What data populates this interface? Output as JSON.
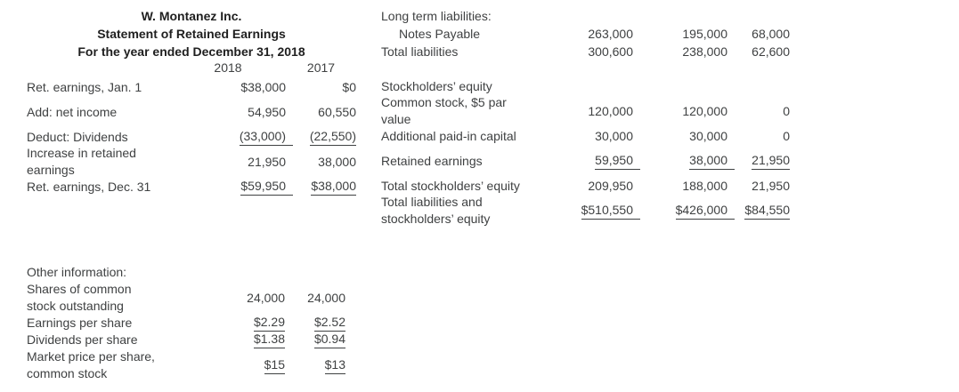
{
  "colors": {
    "background": "#ffffff",
    "body_text": "#3f4142",
    "heading_text": "#1f1f1f",
    "underline": "#3f4142"
  },
  "statement": {
    "company_name": "W. Montanez Inc.",
    "statement_title": "Statement of Retained Earnings",
    "period": "For the year ended December 31, 2018",
    "col_headers": [
      "2018",
      "2017"
    ],
    "rows": [
      {
        "label": "Ret. earnings, Jan. 1",
        "y2018": "$38,000",
        "y2017": "$0"
      },
      {
        "label": "Add: net income",
        "y2018": "54,950",
        "y2017": "60,550"
      },
      {
        "label": "Deduct: Dividends",
        "y2018": "(33,000)",
        "y2017": "(22,550)"
      },
      {
        "label": "Increase in retained\nearnings",
        "y2018": "21,950",
        "y2017": "38,000"
      },
      {
        "label": "Ret. earnings, Dec. 31",
        "y2018": "$59,950",
        "y2017": "$38,000"
      }
    ]
  },
  "balance": {
    "rows": [
      {
        "label": "Long term liabilities:",
        "col1": "",
        "col2": "",
        "col3": ""
      },
      {
        "label": "Notes Payable",
        "col1": "263,000",
        "col2": "195,000",
        "col3": "68,000"
      },
      {
        "label": "Total liabilities",
        "col1": "300,600",
        "col2": "238,000",
        "col3": "62,600"
      },
      {
        "label": "Stockholders’ equity",
        "col1": "",
        "col2": "",
        "col3": ""
      },
      {
        "label": "Common stock, $5 par\nvalue",
        "col1": "120,000",
        "col2": "120,000",
        "col3": "0"
      },
      {
        "label": "Additional paid-in capital",
        "col1": "30,000",
        "col2": "30,000",
        "col3": "0"
      },
      {
        "label": "Retained earnings",
        "col1": "59,950",
        "col2": "38,000",
        "col3": "21,950"
      },
      {
        "label": "Total stockholders’ equity",
        "col1": "209,950",
        "col2": "188,000",
        "col3": "21,950"
      },
      {
        "label": "Total liabilities and\nstockholders’ equity",
        "col1": "$510,550",
        "col2": "$426,000",
        "col3": "$84,550"
      }
    ]
  },
  "other_information": {
    "heading": "Other information:",
    "rows": [
      {
        "label": "Shares of common\nstock outstanding",
        "y2018": "24,000",
        "y2017": "24,000"
      },
      {
        "label": "Earnings per share",
        "y2018": "$2.29",
        "y2017": "$2.52"
      },
      {
        "label": "Dividends per share",
        "y2018": "$1.38",
        "y2017": "$0.94"
      },
      {
        "label": "Market price per share,\ncommon stock",
        "y2018": "$15",
        "y2017": "$13"
      }
    ]
  }
}
